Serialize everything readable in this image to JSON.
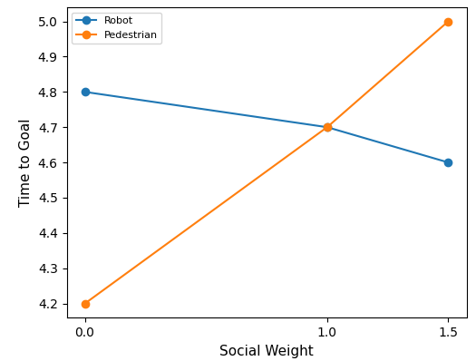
{
  "chart_data": {
    "type": "line",
    "x_label": "Social Weight",
    "y_label": "Time to Goal",
    "x": [
      0,
      1.0,
      1.5
    ],
    "series": [
      {
        "name": "Robot",
        "color": "#1f77b4",
        "marker": "o",
        "values": [
          4.8,
          4.7,
          4.6
        ]
      },
      {
        "name": "Pedestrian",
        "color": "#ff7f0e",
        "marker": "o",
        "values": [
          4.2,
          4.7,
          5.0
        ]
      }
    ],
    "xlim": [
      -0.075,
      1.575
    ],
    "ylim": [
      4.16,
      5.04
    ],
    "xticks": [
      {
        "value": 0,
        "label": "0.0"
      },
      {
        "value": 1,
        "label": "1.0"
      },
      {
        "value": 1.5,
        "label": "1.5"
      }
    ],
    "yticks": [
      4.2,
      4.3,
      4.4,
      4.5,
      4.6,
      4.7,
      4.8,
      4.9,
      {
        "value": 5,
        "label": "5.0"
      }
    ],
    "legend": "upper left",
    "grid": false
  }
}
